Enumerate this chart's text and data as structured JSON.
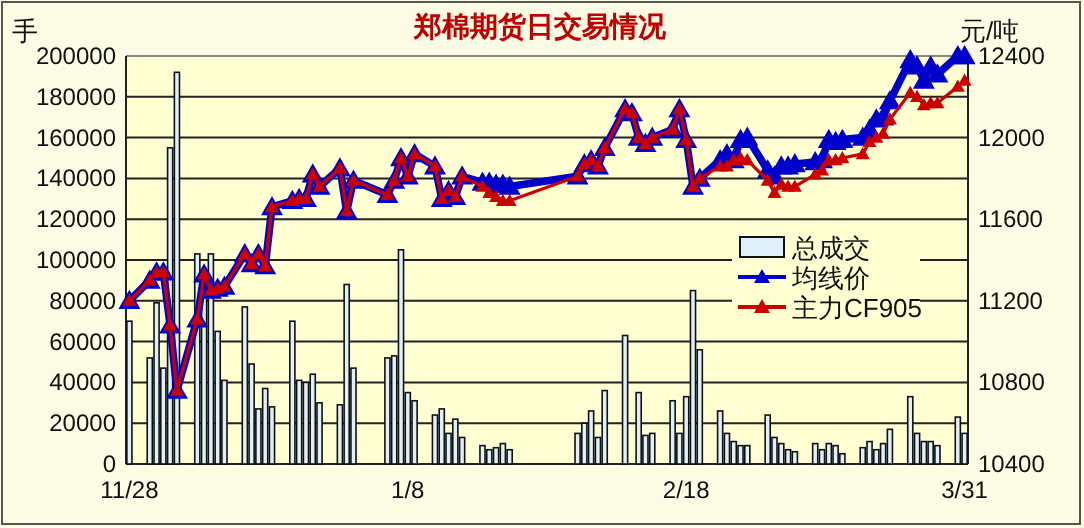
{
  "chart_data": {
    "type": "bar",
    "title": "郑棉期货日交易情况",
    "ylabel": "手",
    "y2label": "元/吨",
    "categories": [
      "11/28",
      null,
      null,
      null,
      null,
      null,
      null,
      null,
      null,
      null,
      null,
      null,
      null,
      null,
      null,
      null,
      null,
      null,
      null,
      null,
      null,
      null,
      null,
      null,
      null,
      null,
      null,
      null,
      null,
      null,
      null,
      null,
      null,
      null,
      null,
      null,
      null,
      null,
      null,
      null,
      null,
      "1/8",
      null,
      null,
      null,
      null,
      null,
      null,
      null,
      null,
      null,
      null,
      null,
      null,
      null,
      null,
      null,
      null,
      null,
      null,
      null,
      null,
      null,
      null,
      null,
      null,
      null,
      null,
      null,
      null,
      null,
      null,
      null,
      null,
      null,
      null,
      null,
      null,
      null,
      null,
      null,
      null,
      "2/18",
      null,
      null,
      null,
      null,
      null,
      null,
      null,
      null,
      null,
      null,
      null,
      null,
      null,
      null,
      null,
      null,
      null,
      null,
      null,
      null,
      null,
      null,
      null,
      null,
      null,
      null,
      null,
      null,
      null,
      null,
      null,
      null,
      null,
      null,
      null,
      null,
      null,
      null,
      null,
      null,
      "3/31"
    ],
    "ylim": [
      0,
      200000
    ],
    "yticks": [
      0,
      20000,
      40000,
      60000,
      80000,
      100000,
      120000,
      140000,
      160000,
      180000,
      200000
    ],
    "y2lim": [
      10400,
      12400
    ],
    "y2ticks": [
      10400,
      10800,
      11200,
      11600,
      12000,
      12400
    ],
    "grid": "y",
    "legend": "right",
    "marker": "triangle",
    "series": [
      {
        "name": "总成交",
        "color": "#dff0f8",
        "values": [
          70000,
          null,
          null,
          52000,
          79000,
          47000,
          155000,
          192000,
          null,
          null,
          103000,
          86000,
          103000,
          65000,
          41000,
          null,
          null,
          77000,
          49000,
          27000,
          37000,
          28000,
          null,
          null,
          70000,
          41000,
          40000,
          44000,
          30000,
          null,
          null,
          29000,
          88000,
          47000,
          null,
          null,
          null,
          null,
          52000,
          53000,
          105000,
          35000,
          31000,
          null,
          null,
          24000,
          27000,
          15000,
          22000,
          13000,
          null,
          null,
          9000,
          7000,
          8000,
          10000,
          7000,
          null,
          null,
          null,
          null,
          null,
          null,
          null,
          null,
          null,
          15000,
          20000,
          26000,
          13000,
          36000,
          null,
          null,
          63000,
          null,
          35000,
          14000,
          15000,
          null,
          null,
          31000,
          15000,
          33000,
          85000,
          56000,
          null,
          null,
          26000,
          15000,
          11000,
          9000,
          9000,
          null,
          null,
          24000,
          13000,
          10000,
          7000,
          6000,
          null,
          null,
          10000,
          7000,
          10000,
          9000,
          5000,
          null,
          null,
          8000,
          11000,
          7000,
          10000,
          17000,
          null,
          null,
          33000,
          15000,
          11000,
          11000,
          9000,
          null,
          null,
          23000,
          15000
        ]
      },
      {
        "name": "均线价",
        "type": "line",
        "axis": "y2",
        "color": "#0000cc",
        "values": [
          11200,
          null,
          null,
          11300,
          11340,
          11340,
          11080,
          10760,
          null,
          null,
          11110,
          11330,
          11250,
          11260,
          11270,
          null,
          null,
          11430,
          11380,
          11430,
          11370,
          11660,
          null,
          null,
          11690,
          11700,
          11700,
          11820,
          11760,
          null,
          null,
          11850,
          11640,
          11790,
          null,
          null,
          null,
          null,
          11720,
          11790,
          11900,
          11810,
          11920,
          null,
          null,
          11860,
          11700,
          11740,
          11710,
          11810,
          null,
          null,
          11780,
          11780,
          11770,
          11770,
          11760,
          null,
          null,
          null,
          null,
          null,
          null,
          null,
          null,
          null,
          11810,
          11870,
          11890,
          11860,
          11950,
          null,
          null,
          12140,
          12120,
          12000,
          11970,
          12000,
          null,
          null,
          12040,
          12140,
          11990,
          11760,
          11800,
          null,
          null,
          11890,
          11920,
          11890,
          11990,
          12000,
          null,
          null,
          11840,
          11810,
          11860,
          11860,
          11870,
          null,
          null,
          11880,
          11890,
          11990,
          11980,
          11990,
          null,
          null,
          12000,
          12040,
          12090,
          12100,
          12180,
          null,
          null,
          12380,
          12350,
          12280,
          12350,
          12310,
          null,
          null,
          12400,
          12400
        ]
      },
      {
        "name": "主力CF905",
        "type": "line",
        "axis": "y2",
        "color": "#cc0000",
        "values": [
          11200,
          null,
          null,
          11300,
          11340,
          11340,
          11080,
          10760,
          null,
          null,
          11110,
          11330,
          11250,
          11260,
          11270,
          null,
          null,
          11430,
          11380,
          11430,
          11370,
          11660,
          null,
          null,
          11690,
          11700,
          11700,
          11820,
          11760,
          null,
          null,
          11850,
          11640,
          11790,
          null,
          null,
          null,
          null,
          11720,
          11790,
          11900,
          11810,
          11920,
          null,
          null,
          11860,
          11700,
          11740,
          11710,
          11810,
          null,
          null,
          11760,
          11730,
          11710,
          11690,
          11690,
          null,
          null,
          null,
          null,
          null,
          null,
          null,
          null,
          null,
          11810,
          11870,
          11890,
          11860,
          11950,
          null,
          null,
          12140,
          12120,
          12000,
          11970,
          12000,
          null,
          null,
          12040,
          12140,
          11990,
          11760,
          11800,
          null,
          null,
          11860,
          11860,
          11890,
          11900,
          11890,
          null,
          null,
          11790,
          11730,
          11770,
          11760,
          11760,
          null,
          null,
          11820,
          11840,
          11890,
          11890,
          11900,
          null,
          null,
          11920,
          11980,
          12000,
          12020,
          12090,
          null,
          null,
          12220,
          12200,
          12160,
          12170,
          12170,
          null,
          null,
          12250,
          12280
        ]
      }
    ]
  }
}
